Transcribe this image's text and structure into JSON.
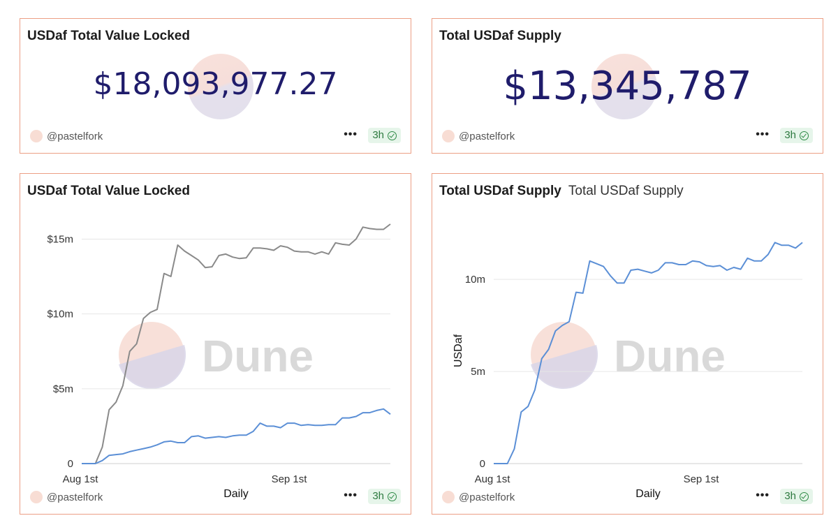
{
  "counters": {
    "tvl": {
      "title": "USDaf Total Value Locked",
      "value": "$18,093,977.27"
    },
    "supply": {
      "title": "Total USDaf Supply",
      "value": "$13,345,787"
    }
  },
  "footer": {
    "author": "@pastelfork",
    "menu_icon": "more-dots-icon",
    "freshness": "3h",
    "freshness_icon": "check-circle-icon"
  },
  "watermark": "Dune",
  "colors": {
    "border": "#ec9f85",
    "counter_value": "#1f1c6b",
    "series_gray": "#8a8a8a",
    "series_blue": "#5b8fd6"
  },
  "chart_data": [
    {
      "type": "line",
      "title": "USDaf Total Value Locked",
      "xlabel": "Daily",
      "ylabel": "",
      "x_ticks": [
        "Aug 1st",
        "Sep 1st"
      ],
      "y_ticks": [
        "0",
        "$5m",
        "$10m",
        "$15m"
      ],
      "ylim": [
        0,
        16000000
      ],
      "x": [
        0,
        2,
        3,
        4,
        5,
        6,
        7,
        8,
        9,
        10,
        11,
        12,
        13,
        14,
        15,
        16,
        17,
        18,
        19,
        20,
        21,
        22,
        23,
        24,
        25,
        26,
        27,
        28,
        29,
        30,
        31,
        32,
        33,
        34,
        35,
        36,
        37,
        38,
        39,
        40,
        41,
        42,
        43,
        44,
        45
      ],
      "series": [
        {
          "color": "#8a8a8a",
          "values": [
            0,
            0,
            1100000,
            3600000,
            4100000,
            5200000,
            7500000,
            8000000,
            9700000,
            10100000,
            10300000,
            12700000,
            12500000,
            14600000,
            14200000,
            13900000,
            13600000,
            13100000,
            13150000,
            13900000,
            14000000,
            13800000,
            13700000,
            13750000,
            14400000,
            14400000,
            14350000,
            14250000,
            14550000,
            14450000,
            14200000,
            14150000,
            14150000,
            14000000,
            14150000,
            14000000,
            14750000,
            14650000,
            14600000,
            15000000,
            15800000,
            15700000,
            15650000,
            15650000,
            16000000
          ]
        },
        {
          "color": "#5b8fd6",
          "values": [
            0,
            0,
            200000,
            550000,
            600000,
            650000,
            800000,
            900000,
            1000000,
            1100000,
            1250000,
            1450000,
            1500000,
            1400000,
            1400000,
            1800000,
            1850000,
            1700000,
            1750000,
            1800000,
            1750000,
            1850000,
            1900000,
            1900000,
            2150000,
            2700000,
            2500000,
            2500000,
            2400000,
            2700000,
            2700000,
            2550000,
            2600000,
            2550000,
            2550000,
            2600000,
            2600000,
            3050000,
            3050000,
            3150000,
            3400000,
            3400000,
            3550000,
            3650000,
            3300000
          ]
        }
      ]
    },
    {
      "type": "line",
      "title": "Total USDaf Supply",
      "subtitle": "Total USDaf Supply",
      "xlabel": "Daily",
      "ylabel": "USDaf",
      "x_ticks": [
        "Aug 1st",
        "Sep 1st"
      ],
      "y_ticks": [
        "0",
        "5m",
        "10m"
      ],
      "ylim": [
        0,
        13000000
      ],
      "x": [
        0,
        2,
        3,
        4,
        5,
        6,
        7,
        8,
        9,
        10,
        11,
        12,
        13,
        14,
        15,
        16,
        17,
        18,
        19,
        20,
        21,
        22,
        23,
        24,
        25,
        26,
        27,
        28,
        29,
        30,
        31,
        32,
        33,
        34,
        35,
        36,
        37,
        38,
        39,
        40,
        41,
        42,
        43,
        44,
        45
      ],
      "series": [
        {
          "color": "#5b8fd6",
          "values": [
            0,
            0,
            800000,
            2800000,
            3100000,
            4000000,
            5700000,
            6200000,
            7200000,
            7500000,
            7700000,
            9300000,
            9250000,
            11000000,
            10850000,
            10700000,
            10200000,
            9800000,
            9800000,
            10500000,
            10550000,
            10450000,
            10350000,
            10500000,
            10900000,
            10900000,
            10800000,
            10800000,
            11000000,
            10950000,
            10750000,
            10700000,
            10750000,
            10500000,
            10650000,
            10550000,
            11150000,
            11000000,
            11000000,
            11350000,
            12000000,
            11850000,
            11850000,
            11700000,
            12000000
          ]
        }
      ]
    }
  ]
}
